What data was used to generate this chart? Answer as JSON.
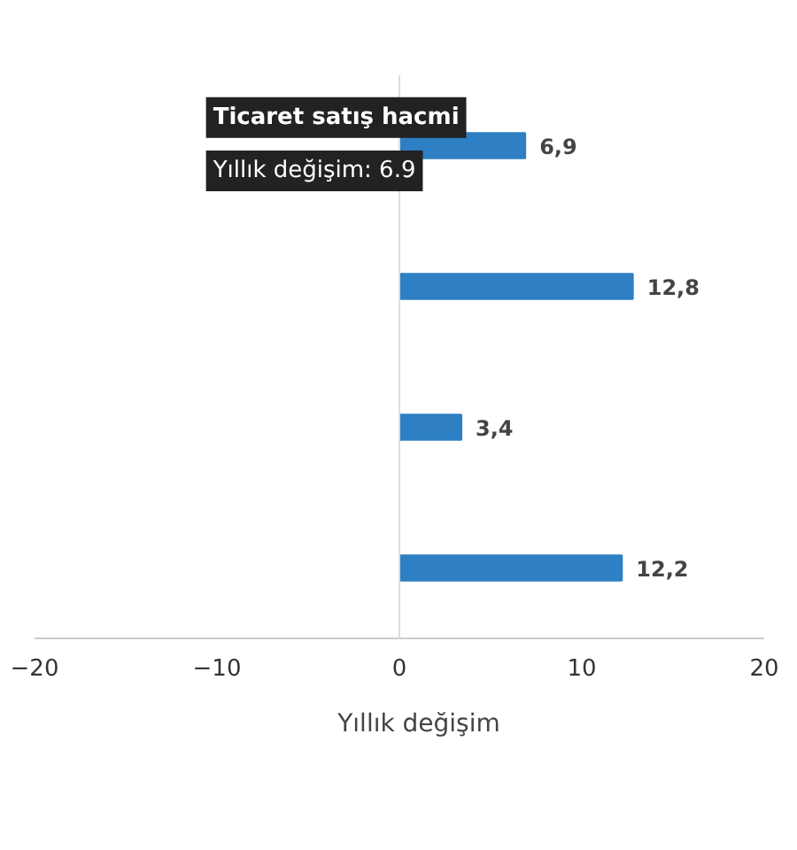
{
  "chart_data": {
    "type": "bar",
    "orientation": "horizontal",
    "categories": [
      null,
      null,
      null,
      null
    ],
    "series": [
      {
        "name": "Yıllık değişim",
        "color": "#2e7fc4",
        "values": [
          6.9,
          12.8,
          3.4,
          12.2
        ],
        "value_labels": [
          "6,9",
          "12,8",
          "3,4",
          "12,2"
        ]
      }
    ],
    "xlim": [
      -20,
      20
    ],
    "ref_lines": [
      {
        "axis": "x",
        "value": 0,
        "color": "#dddddd"
      }
    ],
    "xticks": [
      -20,
      -10,
      0,
      10,
      20
    ],
    "grid": false,
    "legend": "bottom",
    "annotations": [
      "Ticaret satış hacmi",
      "Yıllık değişim: 6.9"
    ]
  }
}
